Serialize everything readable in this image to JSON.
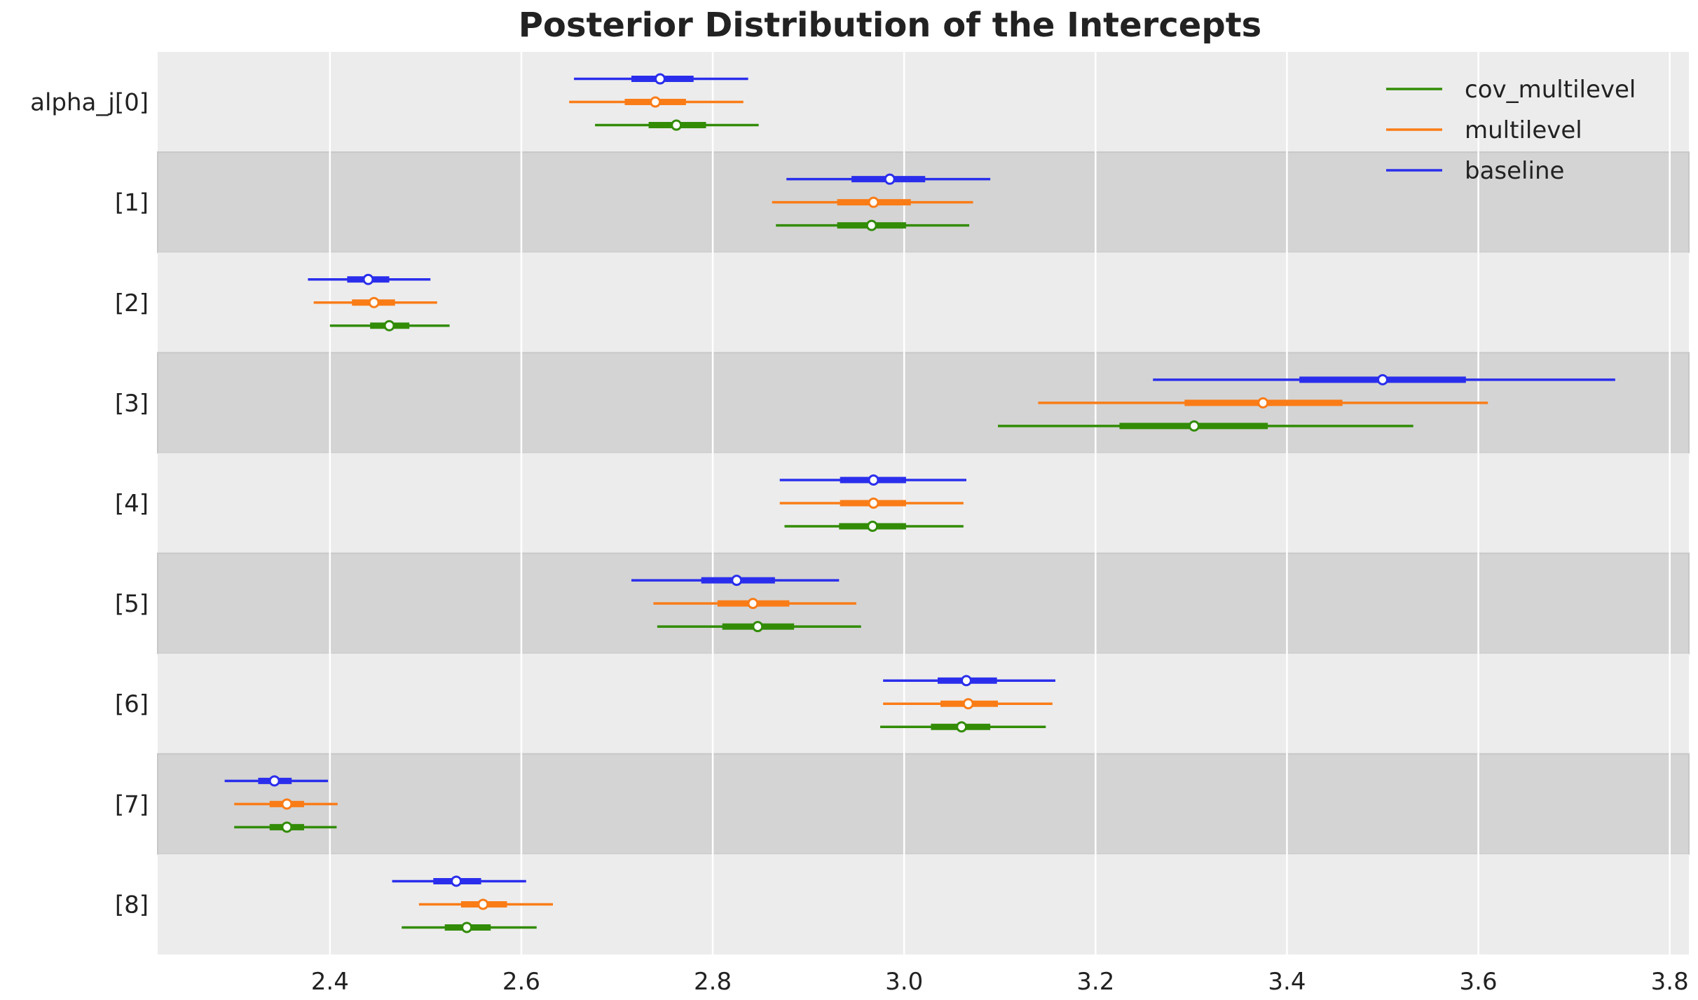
{
  "chart_data": {
    "type": "forest",
    "title": "Posterior Distribution of the Intercepts",
    "xlabel": "",
    "ylabel": "",
    "xlim": [
      2.22,
      3.82
    ],
    "x_ticks": [
      "2.4",
      "2.6",
      "2.8",
      "3.0",
      "3.2",
      "3.4",
      "3.6",
      "3.8"
    ],
    "y_labels": [
      "alpha_j[0]",
      "[1]",
      "[2]",
      "[3]",
      "[4]",
      "[5]",
      "[6]",
      "[7]",
      "[8]"
    ],
    "grid": true,
    "legend_position": "top-right",
    "series": [
      {
        "name": "baseline",
        "color": "#2a2eec",
        "rows": [
          {
            "median": 2.745,
            "iqr": [
              2.715,
              2.78
            ],
            "hdi": [
              2.655,
              2.837
            ]
          },
          {
            "median": 2.985,
            "iqr": [
              2.945,
              3.022
            ],
            "hdi": [
              2.877,
              3.09
            ]
          },
          {
            "median": 2.44,
            "iqr": [
              2.418,
              2.462
            ],
            "hdi": [
              2.377,
              2.505
            ]
          },
          {
            "median": 3.5,
            "iqr": [
              3.413,
              3.587
            ],
            "hdi": [
              3.26,
              3.743
            ]
          },
          {
            "median": 2.968,
            "iqr": [
              2.933,
              3.002
            ],
            "hdi": [
              2.87,
              3.065
            ]
          },
          {
            "median": 2.825,
            "iqr": [
              2.788,
              2.865
            ],
            "hdi": [
              2.715,
              2.932
            ]
          },
          {
            "median": 3.065,
            "iqr": [
              3.035,
              3.097
            ],
            "hdi": [
              2.978,
              3.158
            ]
          },
          {
            "median": 2.342,
            "iqr": [
              2.325,
              2.36
            ],
            "hdi": [
              2.29,
              2.398
            ]
          },
          {
            "median": 2.532,
            "iqr": [
              2.508,
              2.558
            ],
            "hdi": [
              2.465,
              2.605
            ]
          }
        ]
      },
      {
        "name": "multilevel",
        "color": "#fa7c17",
        "rows": [
          {
            "median": 2.74,
            "iqr": [
              2.708,
              2.772
            ],
            "hdi": [
              2.65,
              2.832
            ]
          },
          {
            "median": 2.968,
            "iqr": [
              2.93,
              3.007
            ],
            "hdi": [
              2.862,
              3.072
            ]
          },
          {
            "median": 2.446,
            "iqr": [
              2.423,
              2.468
            ],
            "hdi": [
              2.383,
              2.512
            ]
          },
          {
            "median": 3.375,
            "iqr": [
              3.293,
              3.458
            ],
            "hdi": [
              3.14,
              3.61
            ]
          },
          {
            "median": 2.968,
            "iqr": [
              2.933,
              3.002
            ],
            "hdi": [
              2.87,
              3.062
            ]
          },
          {
            "median": 2.842,
            "iqr": [
              2.805,
              2.88
            ],
            "hdi": [
              2.738,
              2.95
            ]
          },
          {
            "median": 3.067,
            "iqr": [
              3.038,
              3.098
            ],
            "hdi": [
              2.978,
              3.155
            ]
          },
          {
            "median": 2.355,
            "iqr": [
              2.337,
              2.373
            ],
            "hdi": [
              2.3,
              2.408
            ]
          },
          {
            "median": 2.56,
            "iqr": [
              2.537,
              2.585
            ],
            "hdi": [
              2.493,
              2.633
            ]
          }
        ]
      },
      {
        "name": "cov_multilevel",
        "color": "#328c06",
        "rows": [
          {
            "median": 2.762,
            "iqr": [
              2.733,
              2.793
            ],
            "hdi": [
              2.677,
              2.848
            ]
          },
          {
            "median": 2.966,
            "iqr": [
              2.93,
              3.002
            ],
            "hdi": [
              2.866,
              3.068
            ]
          },
          {
            "median": 2.462,
            "iqr": [
              2.442,
              2.483
            ],
            "hdi": [
              2.4,
              2.525
            ]
          },
          {
            "median": 3.303,
            "iqr": [
              3.225,
              3.38
            ],
            "hdi": [
              3.098,
              3.532
            ]
          },
          {
            "median": 2.967,
            "iqr": [
              2.932,
              3.002
            ],
            "hdi": [
              2.875,
              3.062
            ]
          },
          {
            "median": 2.847,
            "iqr": [
              2.81,
              2.885
            ],
            "hdi": [
              2.742,
              2.955
            ]
          },
          {
            "median": 3.06,
            "iqr": [
              3.028,
              3.09
            ],
            "hdi": [
              2.975,
              3.148
            ]
          },
          {
            "median": 2.355,
            "iqr": [
              2.337,
              2.373
            ],
            "hdi": [
              2.3,
              2.407
            ]
          },
          {
            "median": 2.543,
            "iqr": [
              2.52,
              2.568
            ],
            "hdi": [
              2.475,
              2.616
            ]
          }
        ]
      }
    ],
    "legend_order": [
      "cov_multilevel",
      "multilevel",
      "baseline"
    ],
    "band_colors": {
      "light": "#ececec",
      "dark": "#d4d4d4",
      "border": "#c8c8c8"
    }
  }
}
